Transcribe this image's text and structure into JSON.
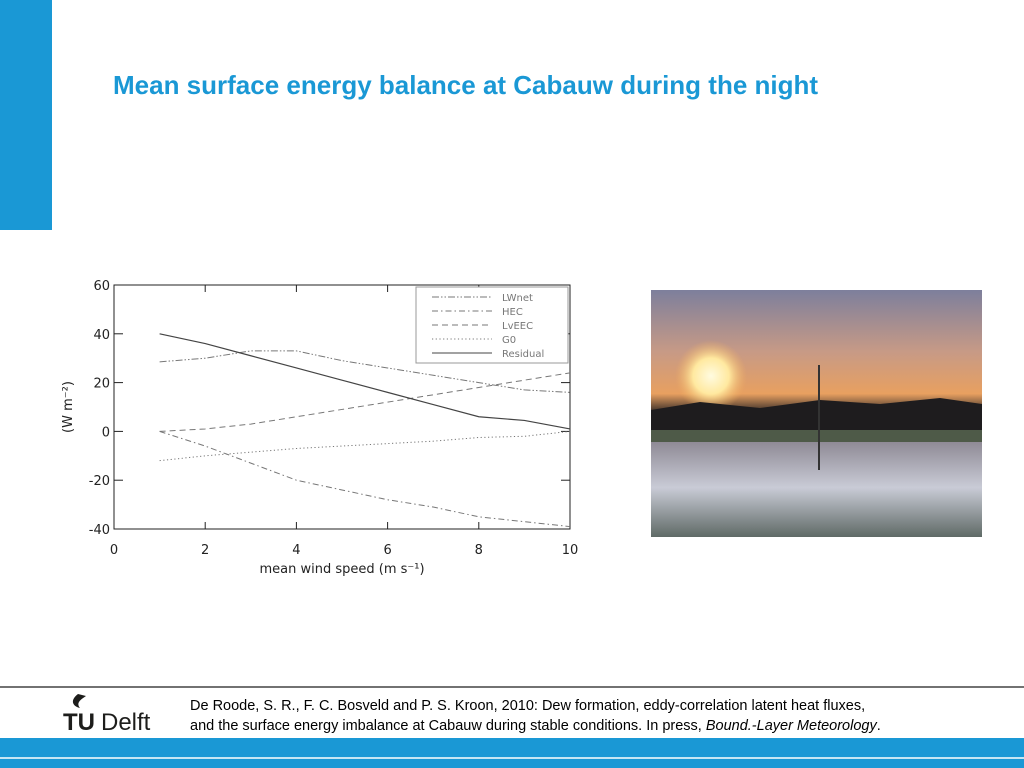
{
  "header": {
    "title": "Mean surface energy balance at Cabauw during the night"
  },
  "chart_data": {
    "type": "line",
    "xlabel": "mean wind speed (m s⁻¹)",
    "ylabel": "(W m⁻²)",
    "x": [
      1,
      2,
      3,
      4,
      5,
      6,
      7,
      8,
      9,
      10
    ],
    "series": [
      {
        "name": "LWnet",
        "color": "#777777",
        "line_style": "dash-dot-dot",
        "values": [
          28.5,
          30,
          33,
          33,
          29,
          26,
          23,
          20,
          17,
          16
        ]
      },
      {
        "name": "HEC",
        "color": "#777777",
        "line_style": "dash-dot",
        "values": [
          0,
          -6,
          -13,
          -20,
          -24,
          -28,
          -31,
          -35,
          -37,
          -39
        ]
      },
      {
        "name": "LvEEC",
        "color": "#777777",
        "line_style": "dashed",
        "values": [
          0,
          1,
          3,
          6,
          9,
          12,
          15,
          18,
          21,
          24
        ]
      },
      {
        "name": "G0",
        "color": "#777777",
        "line_style": "dotted",
        "values": [
          -12,
          -10,
          -8.5,
          -7,
          -6,
          -5,
          -4,
          -2.5,
          -2,
          0
        ]
      },
      {
        "name": "Residual",
        "color": "#444444",
        "line_style": "solid",
        "values": [
          40,
          36,
          31,
          26,
          21,
          16,
          11,
          6,
          4.5,
          1
        ]
      }
    ],
    "xlim": [
      0,
      10
    ],
    "xticks": [
      0,
      2,
      4,
      6,
      8,
      10
    ],
    "ylim": [
      -40,
      60
    ],
    "yticks": [
      -40,
      -20,
      0,
      20,
      40,
      60
    ],
    "legend": "upper right"
  },
  "logo": {
    "tu": "TU",
    "delft": "Delft"
  },
  "citation": {
    "line1": "De Roode, S. R., F. C. Bosveld and P. S. Kroon, 2010:  Dew formation, eddy-correlation latent heat fluxes,",
    "line2": "and the surface energy imbalance at Cabauw during stable conditions. In press,",
    "journal": "Bound.-Layer Meteorology",
    "end": "."
  }
}
